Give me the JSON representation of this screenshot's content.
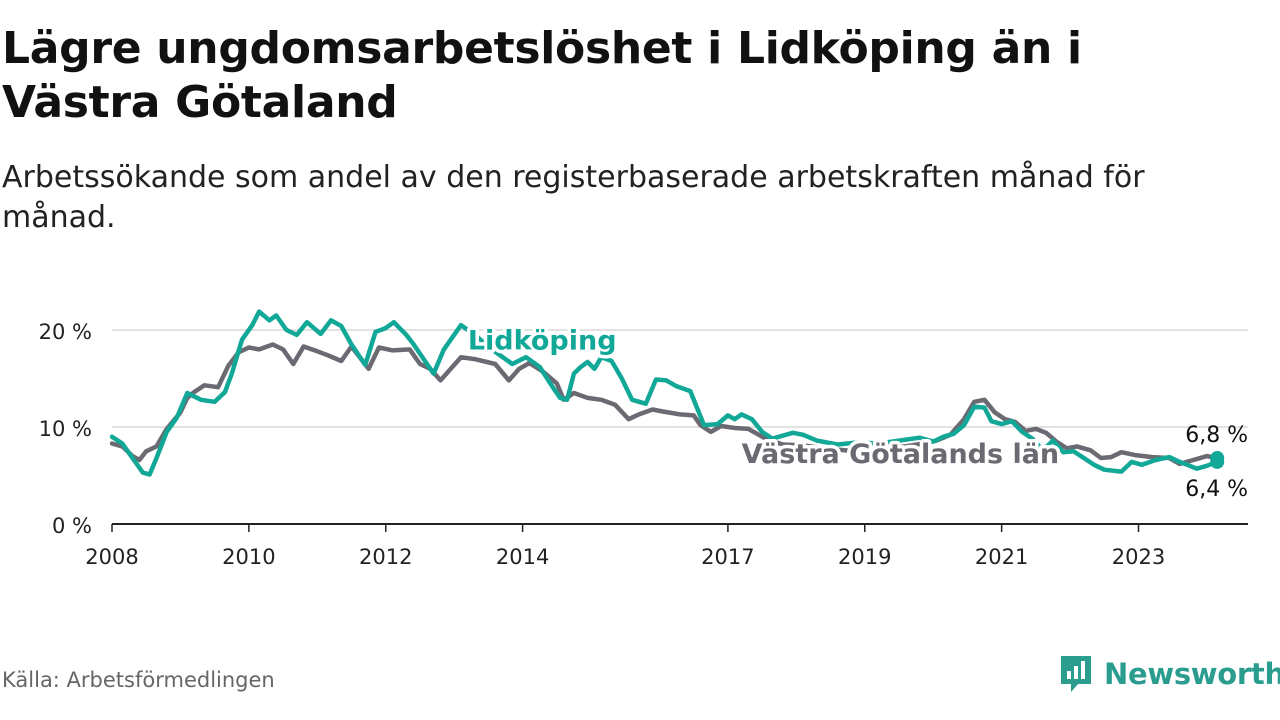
{
  "header": {
    "title": "Lägre ungdomsarbetslöshet i Lidköping än i Västra Götaland",
    "subtitle": "Arbetssökande som andel av den registerbaserade arbetskraften månad för månad."
  },
  "footer": {
    "source": "Källa: Arbetsförmedlingen",
    "brand": "Newsworthy"
  },
  "colors": {
    "lidkoping": "#12a898",
    "vastra_gotaland": "#6b6a72",
    "grid": "#d9d9d9",
    "axis": "#222222",
    "brand": "#2a9d8f"
  },
  "chart_data": {
    "type": "line",
    "xlabel": "",
    "ylabel": "",
    "xlim": [
      2008,
      2024.6
    ],
    "ylim": [
      0,
      22
    ],
    "yticks": [
      {
        "value": 0,
        "label": "0 %"
      },
      {
        "value": 10,
        "label": "10 %"
      },
      {
        "value": 20,
        "label": "20 %"
      }
    ],
    "xticks": [
      {
        "value": 2008,
        "label": "2008"
      },
      {
        "value": 2010,
        "label": "2010"
      },
      {
        "value": 2012,
        "label": "2012"
      },
      {
        "value": 2014,
        "label": "2014"
      },
      {
        "value": 2017,
        "label": "2017"
      },
      {
        "value": 2019,
        "label": "2019"
      },
      {
        "value": 2021,
        "label": "2021"
      },
      {
        "value": 2023,
        "label": "2023"
      }
    ],
    "series": [
      {
        "name": "Lidköping",
        "key": "lidkoping",
        "end_label": "6,4 %",
        "points": [
          [
            2008.0,
            9.0
          ],
          [
            2008.15,
            8.3
          ],
          [
            2008.3,
            6.8
          ],
          [
            2008.45,
            5.3
          ],
          [
            2008.55,
            5.1
          ],
          [
            2008.65,
            6.8
          ],
          [
            2008.8,
            9.5
          ],
          [
            2008.95,
            11.0
          ],
          [
            2009.1,
            13.5
          ],
          [
            2009.3,
            12.8
          ],
          [
            2009.5,
            12.6
          ],
          [
            2009.65,
            13.6
          ],
          [
            2009.75,
            15.5
          ],
          [
            2009.9,
            19.0
          ],
          [
            2010.05,
            20.5
          ],
          [
            2010.15,
            21.9
          ],
          [
            2010.3,
            21.0
          ],
          [
            2010.4,
            21.5
          ],
          [
            2010.55,
            20.0
          ],
          [
            2010.7,
            19.5
          ],
          [
            2010.85,
            20.8
          ],
          [
            2011.05,
            19.6
          ],
          [
            2011.2,
            21.0
          ],
          [
            2011.35,
            20.4
          ],
          [
            2011.5,
            18.5
          ],
          [
            2011.7,
            16.4
          ],
          [
            2011.85,
            19.8
          ],
          [
            2012.0,
            20.2
          ],
          [
            2012.12,
            20.8
          ],
          [
            2012.3,
            19.5
          ],
          [
            2012.4,
            18.6
          ],
          [
            2012.7,
            15.5
          ],
          [
            2012.85,
            18.0
          ],
          [
            2013.1,
            20.5
          ],
          [
            2013.3,
            19.5
          ],
          [
            2013.55,
            18.0
          ],
          [
            2013.85,
            16.5
          ],
          [
            2014.05,
            17.2
          ],
          [
            2014.25,
            16.2
          ],
          [
            2014.45,
            14.0
          ],
          [
            2014.55,
            13.0
          ],
          [
            2014.65,
            12.8
          ],
          [
            2014.75,
            15.5
          ],
          [
            2014.85,
            16.2
          ],
          [
            2014.95,
            16.7
          ],
          [
            2015.05,
            16.0
          ],
          [
            2015.15,
            17.2
          ],
          [
            2015.3,
            16.8
          ],
          [
            2015.45,
            15.0
          ],
          [
            2015.6,
            12.8
          ],
          [
            2015.8,
            12.4
          ],
          [
            2015.95,
            14.9
          ],
          [
            2016.1,
            14.8
          ],
          [
            2016.25,
            14.2
          ],
          [
            2016.45,
            13.7
          ],
          [
            2016.65,
            10.2
          ],
          [
            2016.85,
            10.3
          ],
          [
            2017.0,
            11.2
          ],
          [
            2017.1,
            10.8
          ],
          [
            2017.2,
            11.3
          ],
          [
            2017.35,
            10.8
          ],
          [
            2017.5,
            9.5
          ],
          [
            2017.65,
            8.8
          ],
          [
            2017.8,
            9.1
          ],
          [
            2017.95,
            9.4
          ],
          [
            2018.1,
            9.2
          ],
          [
            2018.3,
            8.6
          ],
          [
            2018.6,
            8.2
          ],
          [
            2018.9,
            8.4
          ],
          [
            2019.2,
            8.3
          ],
          [
            2019.5,
            8.6
          ],
          [
            2019.8,
            8.9
          ],
          [
            2020.0,
            8.5
          ],
          [
            2020.15,
            9.0
          ],
          [
            2020.3,
            9.3
          ],
          [
            2020.45,
            10.2
          ],
          [
            2020.6,
            12.1
          ],
          [
            2020.75,
            12.0
          ],
          [
            2020.85,
            10.6
          ],
          [
            2021.0,
            10.3
          ],
          [
            2021.15,
            10.6
          ],
          [
            2021.3,
            9.5
          ],
          [
            2021.45,
            8.8
          ],
          [
            2021.6,
            7.6
          ],
          [
            2021.75,
            8.6
          ],
          [
            2021.9,
            7.4
          ],
          [
            2022.05,
            7.5
          ],
          [
            2022.2,
            6.8
          ],
          [
            2022.35,
            6.1
          ],
          [
            2022.5,
            5.6
          ],
          [
            2022.75,
            5.4
          ],
          [
            2022.9,
            6.4
          ],
          [
            2023.05,
            6.1
          ],
          [
            2023.25,
            6.6
          ],
          [
            2023.45,
            6.9
          ],
          [
            2023.6,
            6.4
          ],
          [
            2023.75,
            6.0
          ],
          [
            2023.85,
            5.7
          ],
          [
            2024.0,
            6.0
          ],
          [
            2024.15,
            6.4
          ]
        ]
      },
      {
        "name": "Västra Götalands län",
        "key": "vastra_gotaland",
        "end_label": "6,8 %",
        "points": [
          [
            2008.0,
            8.3
          ],
          [
            2008.15,
            8.0
          ],
          [
            2008.3,
            7.0
          ],
          [
            2008.4,
            6.6
          ],
          [
            2008.5,
            7.5
          ],
          [
            2008.65,
            8.0
          ],
          [
            2008.8,
            9.8
          ],
          [
            2009.0,
            11.5
          ],
          [
            2009.1,
            13.0
          ],
          [
            2009.2,
            13.6
          ],
          [
            2009.35,
            14.3
          ],
          [
            2009.55,
            14.1
          ],
          [
            2009.7,
            16.3
          ],
          [
            2009.85,
            17.7
          ],
          [
            2010.0,
            18.2
          ],
          [
            2010.15,
            18.0
          ],
          [
            2010.35,
            18.5
          ],
          [
            2010.5,
            18.0
          ],
          [
            2010.65,
            16.5
          ],
          [
            2010.8,
            18.3
          ],
          [
            2011.0,
            17.8
          ],
          [
            2011.15,
            17.4
          ],
          [
            2011.35,
            16.8
          ],
          [
            2011.5,
            18.3
          ],
          [
            2011.75,
            16.0
          ],
          [
            2011.9,
            18.2
          ],
          [
            2012.1,
            17.9
          ],
          [
            2012.35,
            18.0
          ],
          [
            2012.5,
            16.5
          ],
          [
            2012.65,
            16.0
          ],
          [
            2012.8,
            14.8
          ],
          [
            2012.95,
            16.0
          ],
          [
            2013.1,
            17.2
          ],
          [
            2013.3,
            17.0
          ],
          [
            2013.6,
            16.5
          ],
          [
            2013.8,
            14.8
          ],
          [
            2013.95,
            16.0
          ],
          [
            2014.1,
            16.6
          ],
          [
            2014.3,
            15.7
          ],
          [
            2014.5,
            14.5
          ],
          [
            2014.6,
            12.8
          ],
          [
            2014.75,
            13.5
          ],
          [
            2014.95,
            13.0
          ],
          [
            2015.15,
            12.8
          ],
          [
            2015.35,
            12.3
          ],
          [
            2015.55,
            10.8
          ],
          [
            2015.7,
            11.3
          ],
          [
            2015.9,
            11.8
          ],
          [
            2016.05,
            11.6
          ],
          [
            2016.3,
            11.3
          ],
          [
            2016.5,
            11.2
          ],
          [
            2016.6,
            10.2
          ],
          [
            2016.75,
            9.5
          ],
          [
            2016.9,
            10.1
          ],
          [
            2017.1,
            9.9
          ],
          [
            2017.3,
            9.8
          ],
          [
            2017.55,
            8.8
          ],
          [
            2017.8,
            8.2
          ],
          [
            2018.1,
            8.1
          ],
          [
            2018.4,
            7.8
          ],
          [
            2018.7,
            7.6
          ],
          [
            2019.0,
            7.5
          ],
          [
            2019.3,
            7.8
          ],
          [
            2019.6,
            8.0
          ],
          [
            2019.85,
            8.3
          ],
          [
            2020.05,
            8.6
          ],
          [
            2020.25,
            9.2
          ],
          [
            2020.45,
            10.8
          ],
          [
            2020.6,
            12.6
          ],
          [
            2020.75,
            12.8
          ],
          [
            2020.9,
            11.5
          ],
          [
            2021.05,
            10.8
          ],
          [
            2021.2,
            10.5
          ],
          [
            2021.35,
            9.6
          ],
          [
            2021.5,
            9.8
          ],
          [
            2021.65,
            9.4
          ],
          [
            2021.8,
            8.5
          ],
          [
            2021.95,
            7.8
          ],
          [
            2022.1,
            8.0
          ],
          [
            2022.3,
            7.6
          ],
          [
            2022.45,
            6.8
          ],
          [
            2022.6,
            6.9
          ],
          [
            2022.75,
            7.4
          ],
          [
            2022.95,
            7.1
          ],
          [
            2023.2,
            6.9
          ],
          [
            2023.45,
            6.8
          ],
          [
            2023.6,
            6.2
          ],
          [
            2023.8,
            6.6
          ],
          [
            2024.0,
            7.0
          ],
          [
            2024.15,
            6.8
          ]
        ]
      }
    ],
    "annotations": [
      {
        "series": "lidkoping",
        "text": "Lidköping",
        "x": 2013.2,
        "y": 19.0
      },
      {
        "series": "vastra_gotaland",
        "text": "Västra Götalands län",
        "x": 2017.2,
        "y": 7.3
      }
    ]
  }
}
